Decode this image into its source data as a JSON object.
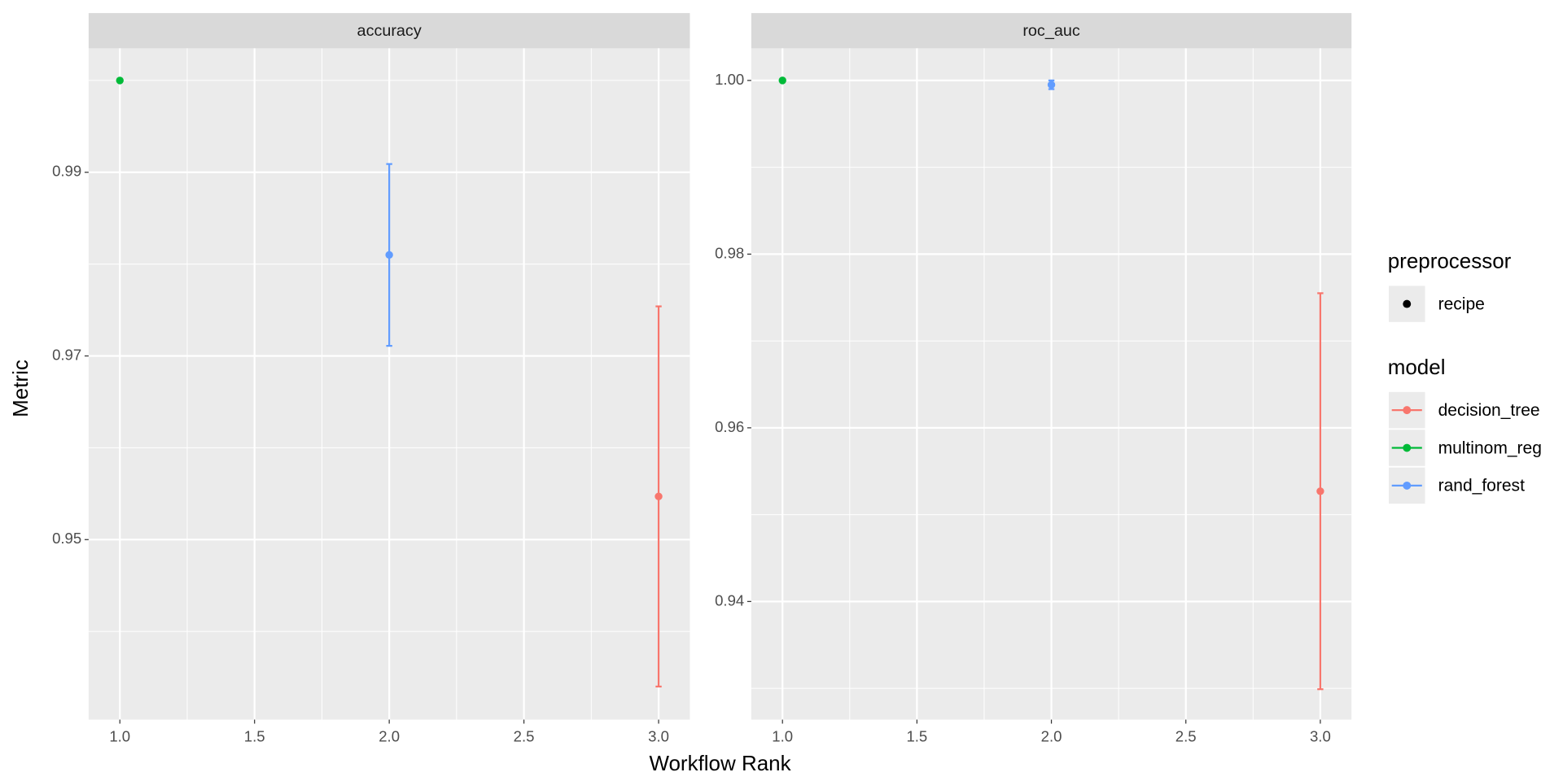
{
  "chart_data": [
    {
      "type": "scatter",
      "title": "accuracy",
      "xlim": [
        0.884,
        3.116
      ],
      "xticks": [
        {
          "value": 1,
          "label": "1.0"
        },
        1.5,
        {
          "value": 2,
          "label": "2.0"
        },
        2.5,
        {
          "value": 3,
          "label": "3.0"
        }
      ],
      "minor_xticks": [
        1.25,
        1.75,
        2.25,
        2.75
      ],
      "ylim": [
        0.9304,
        1.0035
      ],
      "yticks": [
        0.95,
        0.97,
        0.99
      ],
      "minor_yticks": [
        0.94,
        0.96,
        0.98,
        1
      ],
      "series": [
        {
          "x": [
            3
          ],
          "values": [
            0.9547
          ],
          "errors": [
            0.0207
          ]
        },
        {
          "x": [
            1
          ],
          "values": [
            1.0
          ],
          "errors": [
            0
          ]
        },
        {
          "x": [
            2
          ],
          "values": [
            0.981
          ],
          "errors": [
            0.0099
          ]
        }
      ]
    },
    {
      "type": "scatter",
      "title": "roc_auc",
      "xlim": [
        0.884,
        3.116
      ],
      "xticks": [
        {
          "value": 1,
          "label": "1.0"
        },
        1.5,
        {
          "value": 2,
          "label": "2.0"
        },
        2.5,
        {
          "value": 3,
          "label": "3.0"
        }
      ],
      "minor_xticks": [
        1.25,
        1.75,
        2.25,
        2.75
      ],
      "ylim": [
        0.9264,
        1.0037
      ],
      "yticks": [
        0.94,
        0.96,
        0.98,
        {
          "value": 1,
          "label": "1.00"
        }
      ],
      "minor_yticks": [
        0.93,
        0.95,
        0.97,
        0.99
      ],
      "series": [
        {
          "x": [
            3
          ],
          "values": [
            0.9527
          ],
          "errors": [
            0.0228
          ]
        },
        {
          "x": [
            1
          ],
          "values": [
            1.0
          ],
          "errors": [
            0
          ]
        },
        {
          "x": [
            2
          ],
          "values": [
            0.9995
          ],
          "errors": [
            0.0005
          ]
        }
      ]
    }
  ],
  "axis_labels": {
    "x": "Workflow Rank",
    "y": "Metric"
  },
  "legends": [
    {
      "title": "preprocessor",
      "entries": [
        {
          "name": "recipe",
          "color": "#000000"
        }
      ]
    },
    {
      "title": "model",
      "entries": [
        {
          "name": "decision_tree",
          "color": "#F8766D"
        },
        {
          "name": "multinom_reg",
          "color": "#00BA38"
        },
        {
          "name": "rand_forest",
          "color": "#619CFF"
        }
      ]
    }
  ]
}
